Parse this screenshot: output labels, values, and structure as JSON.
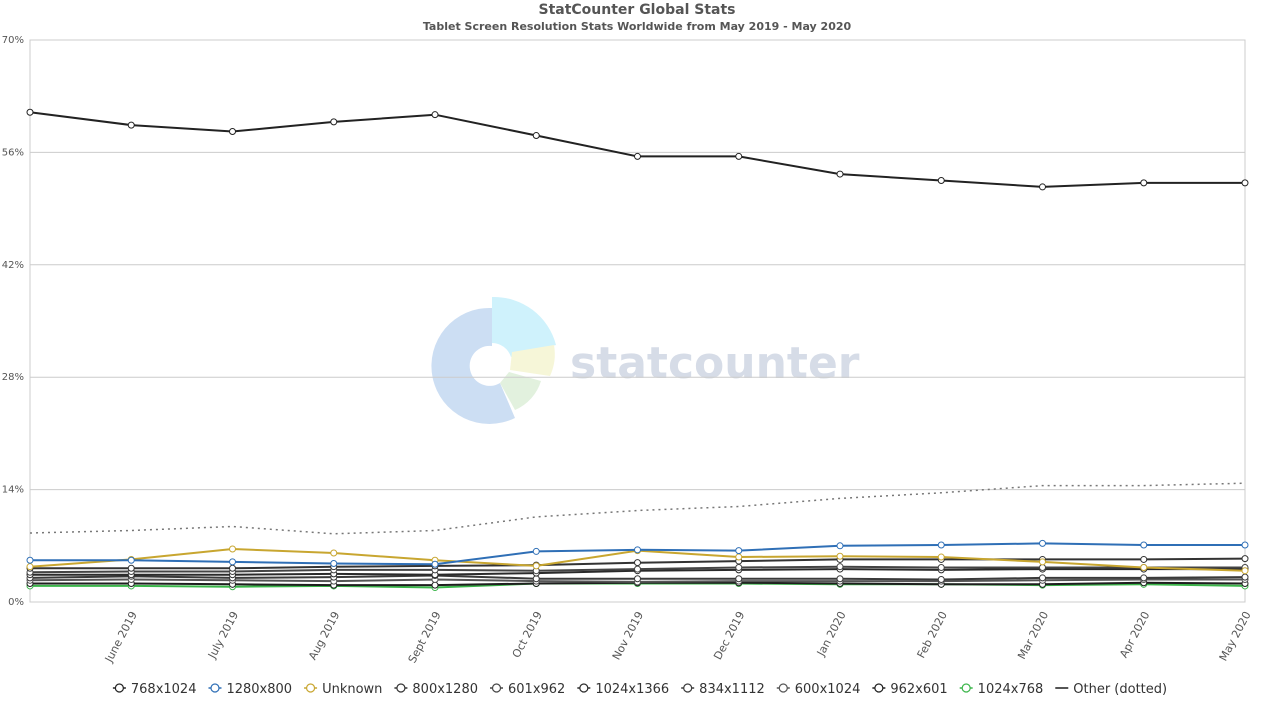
{
  "chart_data": {
    "type": "line",
    "title": "StatCounter Global Stats",
    "subtitle": "Tablet Screen Resolution Stats Worldwide from May 2019 - May 2020",
    "watermark": "statcounter",
    "y_unit": "%",
    "ylim": [
      0,
      70
    ],
    "y_ticks": [
      "0%",
      "14%",
      "28%",
      "42%",
      "56%",
      "70%"
    ],
    "y_tick_values": [
      0,
      14,
      28,
      42,
      56,
      70
    ],
    "grid": true,
    "legend_position": "bottom",
    "categories": [
      "May 2019",
      "June 2019",
      "July 2019",
      "Aug 2019",
      "Sept 2019",
      "Oct 2019",
      "Nov 2019",
      "Dec 2019",
      "Jan 2020",
      "Feb 2020",
      "Mar 2020",
      "Apr 2020",
      "May 2020"
    ],
    "x_tick_labels": [
      "June 2019",
      "July 2019",
      "Aug 2019",
      "Sept 2019",
      "Oct 2019",
      "Nov 2019",
      "Dec 2019",
      "Jan 2020",
      "Feb 2020",
      "Mar 2020",
      "Apr 2020",
      "May 2020"
    ],
    "series": [
      {
        "name": "768x1024",
        "color": "#222222",
        "values": [
          61.0,
          59.4,
          58.6,
          59.8,
          60.7,
          58.1,
          55.5,
          55.5,
          53.3,
          52.5,
          51.7,
          52.2,
          52.2
        ]
      },
      {
        "name": "1280x800",
        "color": "#2f6fb6",
        "values": [
          5.2,
          5.2,
          5.0,
          4.8,
          4.7,
          6.3,
          6.5,
          6.4,
          7.0,
          7.1,
          7.3,
          7.1,
          7.1
        ]
      },
      {
        "name": "Unknown",
        "color": "#c8a630",
        "values": [
          4.4,
          5.3,
          6.6,
          6.1,
          5.2,
          4.5,
          6.4,
          5.6,
          5.7,
          5.6,
          5.0,
          4.3,
          3.9
        ]
      },
      {
        "name": "800x1280",
        "color": "#333333",
        "values": [
          4.2,
          4.2,
          4.2,
          4.4,
          4.5,
          4.6,
          4.9,
          5.1,
          5.3,
          5.3,
          5.3,
          5.3,
          5.4
        ]
      },
      {
        "name": "601x962",
        "color": "#444444",
        "values": [
          3.7,
          3.8,
          3.8,
          4.0,
          4.0,
          3.9,
          4.1,
          4.3,
          4.4,
          4.3,
          4.3,
          4.3,
          4.3
        ]
      },
      {
        "name": "1024x1366",
        "color": "#2a2a2a",
        "values": [
          3.4,
          3.4,
          3.4,
          3.5,
          3.4,
          3.6,
          3.9,
          4.0,
          4.1,
          4.0,
          4.1,
          4.1,
          4.1
        ]
      },
      {
        "name": "834x1112",
        "color": "#3a3a3a",
        "values": [
          3.0,
          3.2,
          3.0,
          3.1,
          3.3,
          2.9,
          2.9,
          2.9,
          2.9,
          2.8,
          3.0,
          3.0,
          3.1
        ]
      },
      {
        "name": "600x1024",
        "color": "#555555",
        "values": [
          2.7,
          2.8,
          2.7,
          2.6,
          2.8,
          2.6,
          2.5,
          2.6,
          2.6,
          2.6,
          2.7,
          2.8,
          2.8
        ]
      },
      {
        "name": "962x601",
        "color": "#1e1e1e",
        "values": [
          2.3,
          2.3,
          2.2,
          2.1,
          2.1,
          2.3,
          2.4,
          2.4,
          2.3,
          2.2,
          2.2,
          2.4,
          2.3
        ]
      },
      {
        "name": "1024x768",
        "color": "#3bb54a",
        "values": [
          2.0,
          2.0,
          1.9,
          2.0,
          1.8,
          2.3,
          2.3,
          2.3,
          2.2,
          2.2,
          2.1,
          2.2,
          2.0
        ]
      },
      {
        "name": "Other (dotted)",
        "color": "#777777",
        "dotted": true,
        "values": [
          8.6,
          8.9,
          9.4,
          8.5,
          8.9,
          10.6,
          11.4,
          11.9,
          12.9,
          13.6,
          14.5,
          14.5,
          14.8
        ]
      }
    ]
  }
}
